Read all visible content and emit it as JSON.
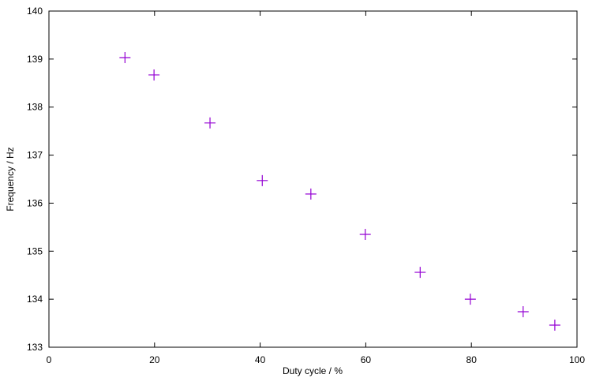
{
  "chart_data": {
    "type": "scatter",
    "x_label": "Duty cycle / %",
    "y_label": "Frequency / Hz",
    "x": [
      14.4,
      19.9,
      30.5,
      40.4,
      49.6,
      59.9,
      70.3,
      79.8,
      89.8,
      95.8
    ],
    "values": [
      139.03,
      138.67,
      137.67,
      136.47,
      136.19,
      135.35,
      134.56,
      134.0,
      133.74,
      133.46
    ],
    "color": "#9400d3",
    "marker": "+",
    "xlim": [
      0,
      100
    ],
    "xticks": [
      0,
      20,
      40,
      60,
      80,
      100
    ],
    "ylim": [
      133,
      140
    ],
    "yticks": [
      133,
      134,
      135,
      136,
      137,
      138,
      139,
      140
    ],
    "grid": false
  }
}
